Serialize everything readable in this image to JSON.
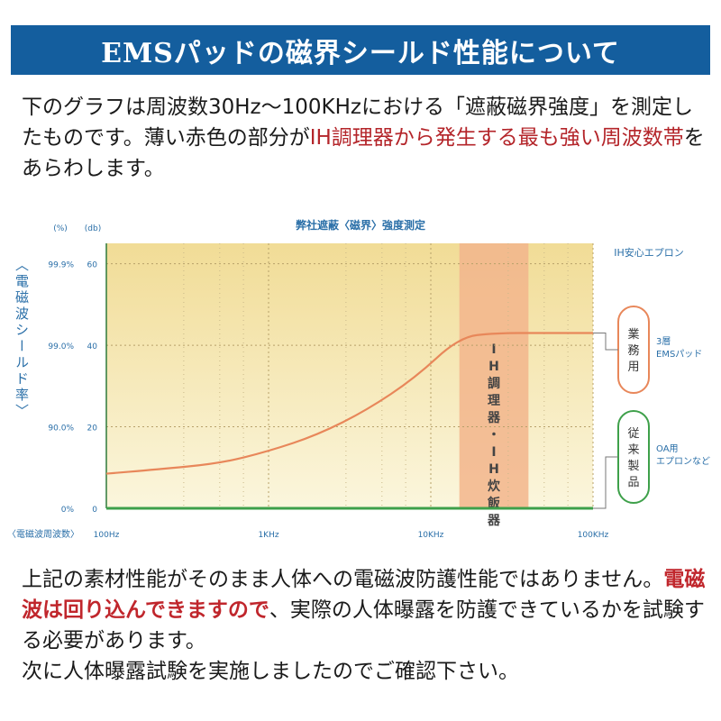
{
  "header": {
    "title": "EMSパッドの磁界シールド性能について"
  },
  "intro": {
    "part1": "下のグラフは周波数30Hz～100KHzにおける「遮蔽磁界強度」を測定したものです。薄い赤色の部分が",
    "highlight": "IH調理器から発生する最も強い周波数帯",
    "part2": "をあらわします。"
  },
  "chart_data": {
    "type": "line",
    "title": "弊社遮蔽〈磁界〉強度測定",
    "xlabel": "〈電磁波周波数〉",
    "x_ticks": [
      "100Hz",
      "1KHz",
      "10KHz",
      "100KHz"
    ],
    "xscale": "log",
    "xlim": [
      100,
      100000
    ],
    "ylabel": "〈電磁波シールド率〉",
    "y_unit_percent": "(%)",
    "y_unit_db": "(db)",
    "y_ticks_db": [
      "0",
      "20",
      "40",
      "60"
    ],
    "y_ticks_percent": [
      "0%",
      "90.0%",
      "99.0%",
      "99.9%"
    ],
    "ylim": [
      0,
      65
    ],
    "shaded_band": {
      "label": "IH調理器・IH炊飯器",
      "x_start": 15000,
      "x_end": 40000,
      "color": "#f2b58c"
    },
    "product_label": "IH安心エプロン",
    "series": [
      {
        "group": "業務用",
        "name": "3層 EMSパッド",
        "color": "#e8875a",
        "points": [
          [
            100,
            8.5
          ],
          [
            200,
            9.5
          ],
          [
            500,
            11
          ],
          [
            1000,
            14
          ],
          [
            2000,
            18
          ],
          [
            4000,
            24
          ],
          [
            8000,
            32
          ],
          [
            15000,
            42
          ],
          [
            25000,
            43
          ],
          [
            50000,
            43
          ],
          [
            100000,
            43
          ]
        ]
      },
      {
        "group": "従来製品",
        "name": "OA用 エプロンなど",
        "color": "#3ea04a",
        "points": [
          [
            100,
            0
          ],
          [
            100000,
            0
          ]
        ]
      }
    ],
    "grid": true,
    "legend_position": "right"
  },
  "outro": {
    "line1": "上記の素材性能がそのまま人体への電磁波防護性能ではありません。",
    "highlight": "電磁波は回り込んできますので",
    "line2": "、実際の人体曝露を防護できているかを試験する必要があります。",
    "line3": "次に人体曝露試験を実施しましたのでご確認下さい。"
  }
}
